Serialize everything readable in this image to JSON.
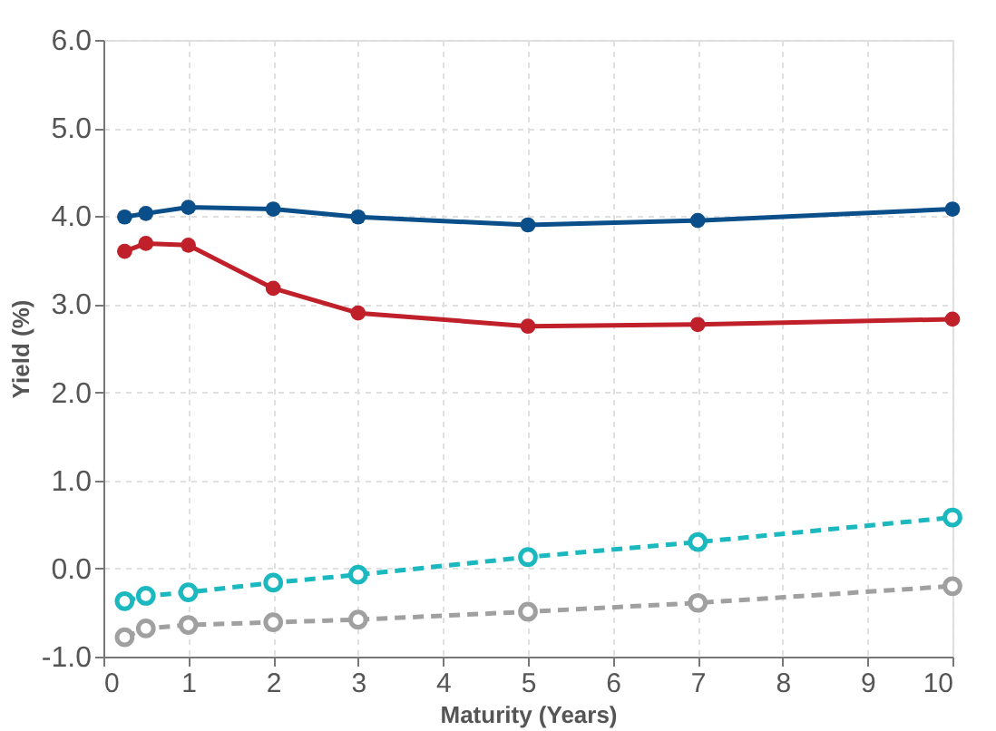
{
  "chart_data": {
    "type": "line",
    "xlabel": "Maturity (Years)",
    "ylabel": "Yield (%)",
    "x": [
      0.25,
      0.5,
      1,
      2,
      3,
      5,
      7,
      10
    ],
    "series": [
      {
        "color": "#0b4f8a",
        "line_style": "solid",
        "marker": "circle",
        "values": [
          3.99,
          4.03,
          4.1,
          4.08,
          3.99,
          3.9,
          3.95,
          4.08
        ]
      },
      {
        "color": "#c0202a",
        "line_style": "solid",
        "marker": "circle",
        "values": [
          3.6,
          3.69,
          3.67,
          3.18,
          2.9,
          2.75,
          2.77,
          2.83
        ]
      },
      {
        "color": "#1bb9bf",
        "line_style": "dashed",
        "marker": "circle",
        "values": [
          -0.37,
          -0.31,
          -0.27,
          -0.16,
          -0.07,
          0.13,
          0.3,
          0.58
        ]
      },
      {
        "color": "#a0a0a0",
        "line_style": "dashed",
        "marker": "circle",
        "values": [
          -0.78,
          -0.68,
          -0.64,
          -0.61,
          -0.58,
          -0.49,
          -0.39,
          -0.2
        ]
      }
    ],
    "xlim": [
      0,
      10
    ],
    "xticks": [
      0,
      1,
      2,
      3,
      4,
      5,
      6,
      7,
      8,
      9,
      10
    ],
    "ylim": [
      -1,
      6
    ],
    "yticks": [
      {
        "value": -1,
        "label": "-1.0"
      },
      {
        "value": 0,
        "label": "0.0"
      },
      {
        "value": 1,
        "label": "1.0"
      },
      {
        "value": 2,
        "label": "2.0"
      },
      {
        "value": 3,
        "label": "3.0"
      },
      {
        "value": 4,
        "label": "4.0"
      },
      {
        "value": 5,
        "label": "5.0"
      },
      {
        "value": 6,
        "label": "6.0"
      }
    ],
    "grid": true
  }
}
